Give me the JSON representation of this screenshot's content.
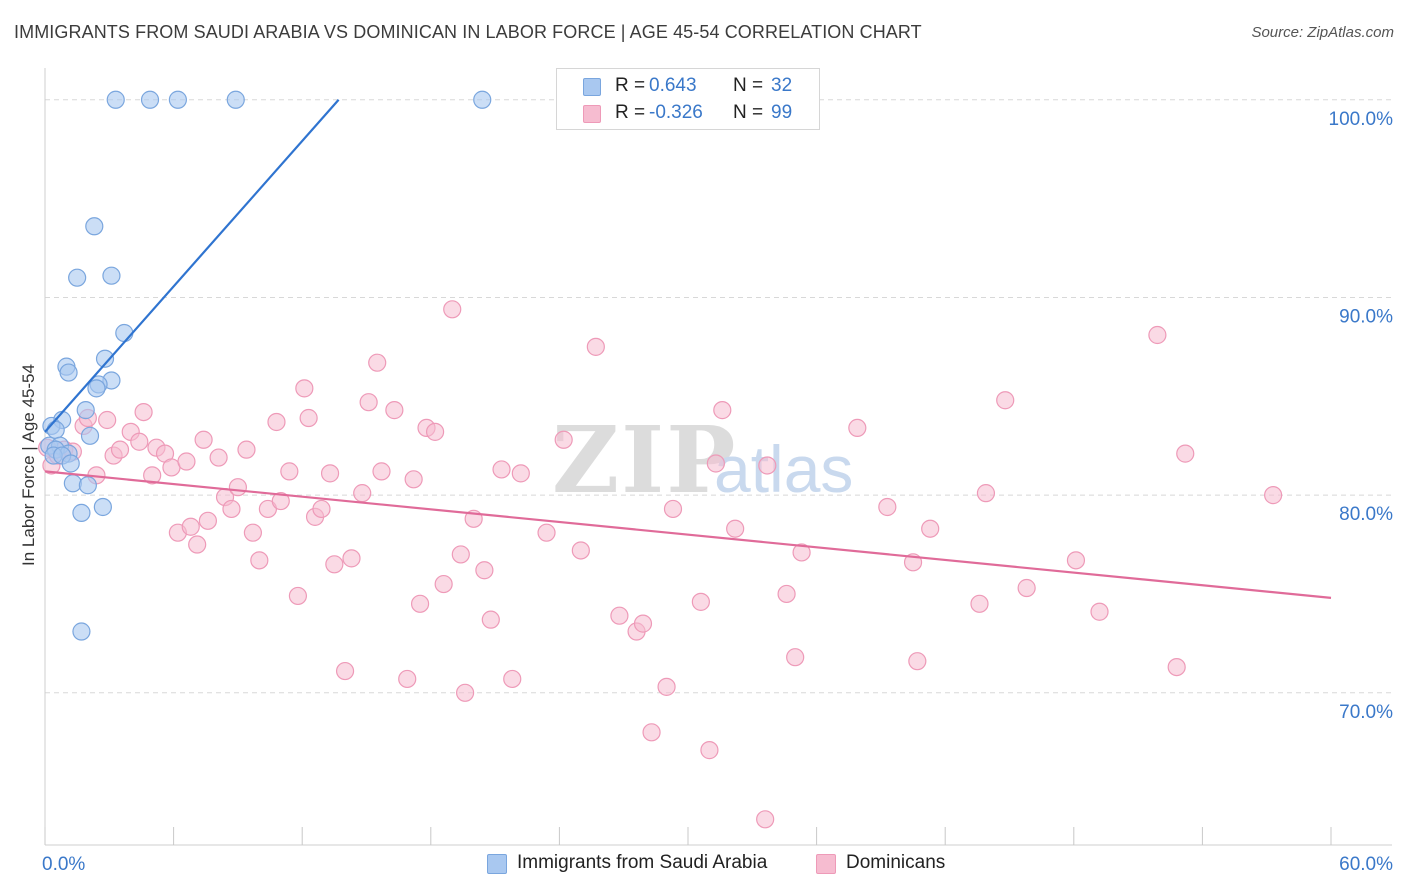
{
  "title": "IMMIGRANTS FROM SAUDI ARABIA VS DOMINICAN IN LABOR FORCE | AGE 45-54 CORRELATION CHART",
  "source": "Source: ZipAtlas.com",
  "watermark": {
    "zip": "ZIP",
    "atlas": "atlas"
  },
  "legend": {
    "rows": [
      {
        "r_label": "R =",
        "r_value": "0.643",
        "n_label": "N =",
        "n_value": "32"
      },
      {
        "r_label": "R =",
        "r_value": "-0.326",
        "n_label": "N =",
        "n_value": "99"
      }
    ]
  },
  "bottom_legend": {
    "saudi": "Immigrants from Saudi Arabia",
    "dominicans": "Dominicans"
  },
  "colors": {
    "saudi_fill": "#a9c8f0",
    "saudi_stroke": "#7aa6de",
    "saudi_line": "#2f74d0",
    "dom_fill": "#f6bcd0",
    "dom_stroke": "#ee9ab8",
    "dom_line": "#e06b99",
    "axis_label": "#3a78c9",
    "grid": "#d8d8d8"
  },
  "chart_data": {
    "type": "scatter",
    "title": "IMMIGRANTS FROM SAUDI ARABIA VS DOMINICAN IN LABOR FORCE | AGE 45-54 CORRELATION CHART",
    "xlabel": "",
    "ylabel": "In Labor Force | Age 45-54",
    "xlim": [
      0,
      60
    ],
    "ylim": [
      62.3,
      101
    ],
    "x_tick_labels": [
      "0.0%",
      "60.0%"
    ],
    "y_ticks": [
      70,
      80,
      90,
      100
    ],
    "y_tick_labels": [
      "70.0%",
      "80.0%",
      "90.0%",
      "100.0%"
    ],
    "series": [
      {
        "name": "Immigrants from Saudi Arabia",
        "points": [
          [
            3.3,
            100
          ],
          [
            4.9,
            100
          ],
          [
            6.2,
            100
          ],
          [
            8.9,
            100
          ],
          [
            20.4,
            100
          ],
          [
            2.3,
            93.6
          ],
          [
            1.5,
            91.0
          ],
          [
            3.1,
            91.1
          ],
          [
            3.7,
            88.2
          ],
          [
            2.8,
            86.9
          ],
          [
            1.0,
            86.5
          ],
          [
            1.1,
            86.2
          ],
          [
            3.1,
            85.8
          ],
          [
            2.5,
            85.6
          ],
          [
            2.4,
            85.4
          ],
          [
            1.9,
            84.3
          ],
          [
            0.8,
            83.8
          ],
          [
            0.3,
            83.5
          ],
          [
            0.5,
            83.3
          ],
          [
            2.1,
            83.0
          ],
          [
            0.2,
            82.5
          ],
          [
            0.7,
            82.5
          ],
          [
            0.5,
            82.3
          ],
          [
            1.1,
            82.1
          ],
          [
            0.4,
            82.0
          ],
          [
            0.8,
            82.0
          ],
          [
            1.2,
            81.6
          ],
          [
            1.3,
            80.6
          ],
          [
            2.0,
            80.5
          ],
          [
            2.7,
            79.4
          ],
          [
            1.7,
            79.1
          ],
          [
            1.7,
            73.1
          ]
        ],
        "trend": [
          [
            0,
            83.2
          ],
          [
            13.7,
            100
          ]
        ]
      },
      {
        "name": "Dominicans",
        "points": [
          [
            0.3,
            81.5
          ],
          [
            0.6,
            82.0
          ],
          [
            0.9,
            82.3
          ],
          [
            1.3,
            82.2
          ],
          [
            1.8,
            83.5
          ],
          [
            2.0,
            83.9
          ],
          [
            2.4,
            81.0
          ],
          [
            2.9,
            83.8
          ],
          [
            3.2,
            82.0
          ],
          [
            3.5,
            82.3
          ],
          [
            4.0,
            83.2
          ],
          [
            4.4,
            82.7
          ],
          [
            4.6,
            84.2
          ],
          [
            5.0,
            81.0
          ],
          [
            5.2,
            82.4
          ],
          [
            5.6,
            82.1
          ],
          [
            5.9,
            81.4
          ],
          [
            6.2,
            78.1
          ],
          [
            6.6,
            81.7
          ],
          [
            6.8,
            78.4
          ],
          [
            7.1,
            77.5
          ],
          [
            7.4,
            82.8
          ],
          [
            7.6,
            78.7
          ],
          [
            8.1,
            81.9
          ],
          [
            8.4,
            79.9
          ],
          [
            8.7,
            79.3
          ],
          [
            9.0,
            80.4
          ],
          [
            9.4,
            82.3
          ],
          [
            9.7,
            78.1
          ],
          [
            10.0,
            76.7
          ],
          [
            10.4,
            79.3
          ],
          [
            10.8,
            83.7
          ],
          [
            11.0,
            79.7
          ],
          [
            11.4,
            81.2
          ],
          [
            11.8,
            74.9
          ],
          [
            12.1,
            85.4
          ],
          [
            12.3,
            83.9
          ],
          [
            12.6,
            78.9
          ],
          [
            12.9,
            79.3
          ],
          [
            13.3,
            81.1
          ],
          [
            13.5,
            76.5
          ],
          [
            14.0,
            71.1
          ],
          [
            14.3,
            76.8
          ],
          [
            14.8,
            80.1
          ],
          [
            15.1,
            84.7
          ],
          [
            15.5,
            86.7
          ],
          [
            15.7,
            81.2
          ],
          [
            16.3,
            84.3
          ],
          [
            16.9,
            70.7
          ],
          [
            17.2,
            80.8
          ],
          [
            17.5,
            74.5
          ],
          [
            17.8,
            83.4
          ],
          [
            18.2,
            83.2
          ],
          [
            18.6,
            75.5
          ],
          [
            19.0,
            89.4
          ],
          [
            19.4,
            77.0
          ],
          [
            19.6,
            70.0
          ],
          [
            20.0,
            78.8
          ],
          [
            20.5,
            76.2
          ],
          [
            20.8,
            73.7
          ],
          [
            21.3,
            81.3
          ],
          [
            21.8,
            70.7
          ],
          [
            22.2,
            81.1
          ],
          [
            23.4,
            78.1
          ],
          [
            24.2,
            82.8
          ],
          [
            25.0,
            77.2
          ],
          [
            25.7,
            87.5
          ],
          [
            26.8,
            73.9
          ],
          [
            27.6,
            73.1
          ],
          [
            27.9,
            73.5
          ],
          [
            28.3,
            68.0
          ],
          [
            29.0,
            70.3
          ],
          [
            29.3,
            79.3
          ],
          [
            30.6,
            74.6
          ],
          [
            31.0,
            67.1
          ],
          [
            31.3,
            81.6
          ],
          [
            31.6,
            84.3
          ],
          [
            32.2,
            78.3
          ],
          [
            33.6,
            63.6
          ],
          [
            33.7,
            81.5
          ],
          [
            34.6,
            75.0
          ],
          [
            35.0,
            71.8
          ],
          [
            35.3,
            77.1
          ],
          [
            37.9,
            83.4
          ],
          [
            39.3,
            79.4
          ],
          [
            40.5,
            76.6
          ],
          [
            40.7,
            71.6
          ],
          [
            41.3,
            78.3
          ],
          [
            43.6,
            74.5
          ],
          [
            43.9,
            80.1
          ],
          [
            44.8,
            84.8
          ],
          [
            45.8,
            75.3
          ],
          [
            48.1,
            76.7
          ],
          [
            49.2,
            74.1
          ],
          [
            51.9,
            88.1
          ],
          [
            52.8,
            71.3
          ],
          [
            53.2,
            82.1
          ],
          [
            57.3,
            80.0
          ],
          [
            0.1,
            82.4
          ]
        ],
        "trend": [
          [
            0,
            81.2
          ],
          [
            60,
            74.8
          ]
        ]
      }
    ]
  }
}
